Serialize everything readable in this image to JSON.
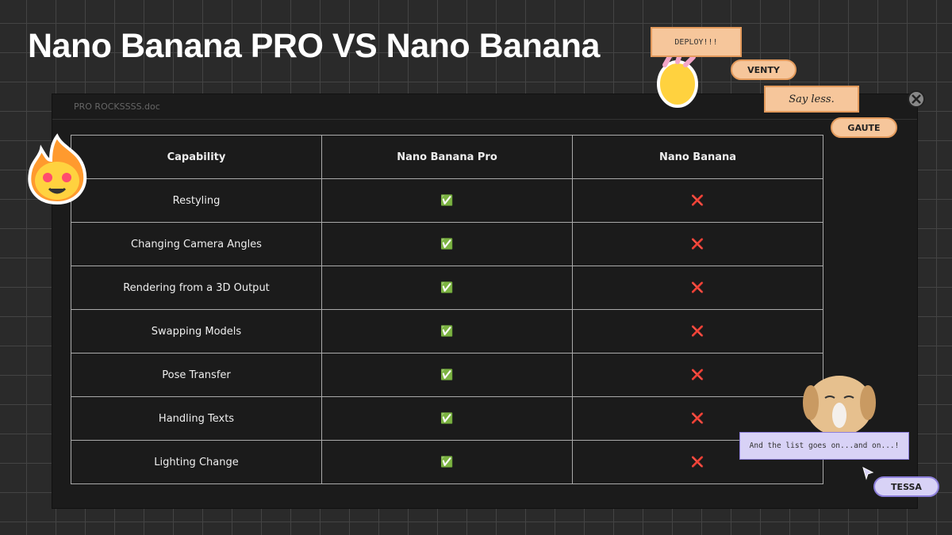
{
  "title": "Nano Banana PRO VS Nano Banana",
  "window": {
    "filename": "PRO ROCKSSSS.doc"
  },
  "table": {
    "header": [
      "Capability",
      "Nano Banana Pro",
      "Nano Banana"
    ],
    "rows": [
      [
        "Restyling",
        "✅",
        "❌"
      ],
      [
        "Changing Camera Angles",
        "✅",
        "❌"
      ],
      [
        "Rendering from a 3D Output",
        "✅",
        "❌"
      ],
      [
        "Swapping Models",
        "✅",
        "❌"
      ],
      [
        "Pose Transfer",
        "✅",
        "❌"
      ],
      [
        "Handling Texts",
        "✅",
        "❌"
      ],
      [
        "Lighting Change",
        "✅",
        "❌"
      ]
    ]
  },
  "comments": [
    {
      "text": "DEPLOY!!!",
      "author": "VENTY"
    },
    {
      "text": "Say less.",
      "author": "GAUTE"
    },
    {
      "text": "And the list goes on...and on...!",
      "author": "TESSA"
    }
  ]
}
